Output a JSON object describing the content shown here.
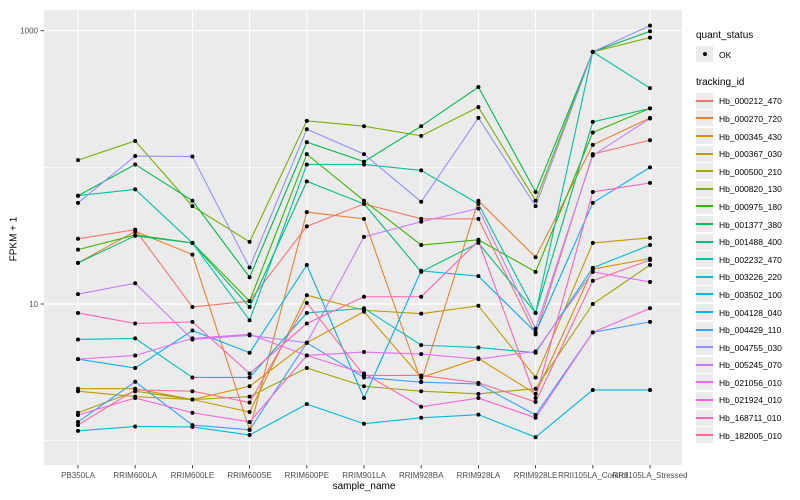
{
  "style": {
    "panel_background": "#EBEBEB",
    "gridline_color": "#FFFFFF",
    "tick_label_color": "#4D4D4D",
    "tick_mark_color": "#333333",
    "point_color": "#000000"
  },
  "legend": {
    "quant_status_title": "quant_status",
    "quant_status_items": [
      {
        "label": "OK",
        "symbol": "point"
      }
    ],
    "tracking_id_title": "tracking_id"
  },
  "chart_data": {
    "type": "line",
    "title": "",
    "xlabel": "sample_name",
    "ylabel": "FPKM + 1",
    "y_scale": "log10",
    "grid": true,
    "legend_position": "right",
    "point_shape": "filled-circle",
    "x_categories": [
      "PB350LA",
      "RRIM600LA",
      "RRIM600LE",
      "RRIM600SE",
      "RRIM600PE",
      "RRIM901LA",
      "RRIM928BA",
      "RRIM928LA",
      "RRIM928LE",
      "RRII105LA_Control",
      "RRII105LA_Stressed"
    ],
    "y_ticks": [
      {
        "label": "1000",
        "value": 1000
      },
      {
        "label": "10",
        "value": 10
      }
    ],
    "y_minor_gridlines": [
      100,
      1
    ],
    "ylim": [
      0.6,
      1400
    ],
    "series": [
      {
        "tracking_id": "Hb_000212_470",
        "color": "#F8766D",
        "values": [
          30,
          35,
          9.5,
          10.5,
          37,
          54,
          42,
          42,
          6,
          125,
          158
        ]
      },
      {
        "tracking_id": "Hb_000270_720",
        "color": "#EA8331",
        "values": [
          20,
          34,
          23,
          1.2,
          47,
          42,
          2.7,
          57,
          22,
          146,
          230
        ]
      },
      {
        "tracking_id": "Hb_000345_430",
        "color": "#D89000",
        "values": [
          2.4,
          2.4,
          2.0,
          2.5,
          5.2,
          8.8,
          2.9,
          4.0,
          2.2,
          18,
          21.5
        ]
      },
      {
        "tracking_id": "Hb_000367_030",
        "color": "#C09B00",
        "values": [
          2.3,
          2.1,
          2.0,
          1.62,
          11.6,
          9.0,
          8.5,
          9.7,
          2.9,
          28,
          30.5
        ]
      },
      {
        "tracking_id": "Hb_000500_210",
        "color": "#A3A500",
        "values": [
          1.6,
          2.3,
          2.0,
          2.1,
          3.4,
          2.5,
          2.3,
          2.2,
          2.4,
          10,
          19.3
        ]
      },
      {
        "tracking_id": "Hb_000820_130",
        "color": "#7CAE00",
        "values": [
          113,
          156,
          52,
          28.5,
          219,
          200,
          170,
          276,
          57,
          700,
          890
        ]
      },
      {
        "tracking_id": "Hb_000975_180",
        "color": "#39B600",
        "values": [
          25,
          32,
          28,
          10.5,
          125,
          57,
          27,
          29.5,
          17.2,
          180,
          270
        ]
      },
      {
        "tracking_id": "Hb_001377_380",
        "color": "#00BB4E",
        "values": [
          62,
          105,
          57,
          15.7,
          153,
          110,
          200,
          387,
          66,
          700,
          990
        ]
      },
      {
        "tracking_id": "Hb_001488_400",
        "color": "#00BF7D",
        "values": [
          20,
          31.5,
          28,
          9.5,
          79,
          54,
          17.2,
          28,
          8.6,
          215,
          270
        ]
      },
      {
        "tracking_id": "Hb_002232_470",
        "color": "#00C1A3",
        "values": [
          62,
          69,
          28,
          7.6,
          105,
          105,
          95,
          54,
          8.6,
          700,
          380
        ]
      },
      {
        "tracking_id": "Hb_003226_220",
        "color": "#00BFC4",
        "values": [
          5.5,
          5.6,
          2.9,
          2.9,
          8.6,
          9.3,
          5.0,
          4.8,
          4.4,
          18.4,
          27
        ]
      },
      {
        "tracking_id": "Hb_003502_100",
        "color": "#00BAE0",
        "values": [
          1.18,
          1.27,
          1.26,
          1.1,
          1.85,
          1.33,
          1.47,
          1.55,
          1.06,
          2.35,
          2.35
        ]
      },
      {
        "tracking_id": "Hb_004128_040",
        "color": "#00B0F6",
        "values": [
          3.95,
          3.4,
          6.4,
          4.4,
          19.3,
          2.05,
          17.5,
          16,
          6.2,
          55,
          100
        ]
      },
      {
        "tracking_id": "Hb_004429_110",
        "color": "#35A2FF",
        "values": [
          1.37,
          2.7,
          1.3,
          1.2,
          5.2,
          2.9,
          2.68,
          2.6,
          1.54,
          6.2,
          7.4
        ]
      },
      {
        "tracking_id": "Hb_004755_030",
        "color": "#9590FF",
        "values": [
          55,
          121,
          120,
          18.5,
          190,
          125,
          56,
          230,
          52,
          700,
          1090
        ]
      },
      {
        "tracking_id": "Hb_005245_070",
        "color": "#C77CFF",
        "values": [
          11.8,
          14.2,
          5.5,
          5.9,
          5.2,
          31,
          40,
          50,
          6.6,
          122,
          228
        ]
      },
      {
        "tracking_id": "Hb_021056_010",
        "color": "#E76BF3",
        "values": [
          3.95,
          4.2,
          5.6,
          6.0,
          4.2,
          4.45,
          4.3,
          3.95,
          4.5,
          17.2,
          14.5
        ]
      },
      {
        "tracking_id": "Hb_021924_010",
        "color": "#FA62DB",
        "values": [
          1.54,
          2.05,
          1.6,
          1.37,
          4.2,
          3.1,
          1.77,
          2.05,
          1.47,
          6.2,
          9.3
        ]
      },
      {
        "tracking_id": "Hb_168711_010",
        "color": "#FF62BC",
        "values": [
          8.6,
          7.2,
          7.4,
          3.1,
          7.2,
          11.3,
          11.3,
          29,
          2.05,
          66,
          77
        ]
      },
      {
        "tracking_id": "Hb_182005_010",
        "color": "#FF6A98",
        "values": [
          1.3,
          2.35,
          2.3,
          1.9,
          10.2,
          3.0,
          3.0,
          2.65,
          1.92,
          14.8,
          21
        ]
      }
    ]
  }
}
